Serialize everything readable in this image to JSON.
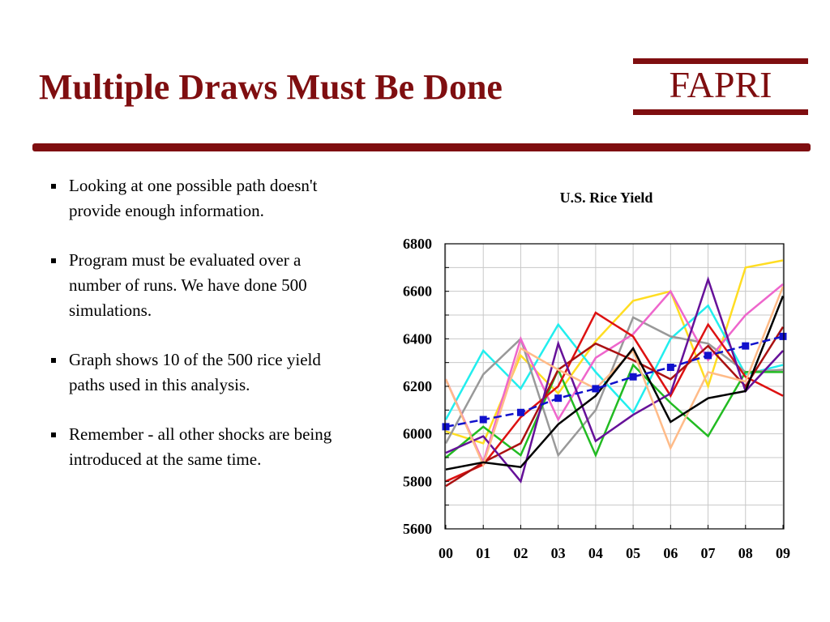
{
  "slide": {
    "title": "Multiple Draws Must Be Done",
    "logo": "FAPRI",
    "accent_color": "#7f0e10",
    "bullets": [
      "Looking at one possible path doesn't provide enough information.",
      "Program must be evaluated over a number of runs. We have done 500 simulations.",
      "Graph shows 10 of the 500 rice yield paths used in this analysis.",
      "Remember - all other shocks are being introduced at the same time."
    ]
  },
  "chart_data": {
    "type": "line",
    "title": "U.S. Rice Yield",
    "xlabel": "",
    "ylabel": "",
    "categories": [
      "00",
      "01",
      "02",
      "03",
      "04",
      "05",
      "06",
      "07",
      "08",
      "09"
    ],
    "ylim": [
      5600,
      6800
    ],
    "yticks": [
      "5600",
      "5800",
      "6000",
      "6200",
      "6400",
      "6600",
      "6800"
    ],
    "grid": true,
    "legend": "none",
    "series": [
      {
        "color": "#ffdd22",
        "values": [
          6010,
          5960,
          6330,
          6170,
          6390,
          6560,
          6600,
          6200,
          6700,
          6730
        ]
      },
      {
        "color": "#22eeee",
        "values": [
          6060,
          6350,
          6190,
          6460,
          6260,
          6090,
          6400,
          6540,
          6250,
          6290
        ]
      },
      {
        "color": "#999999",
        "values": [
          5960,
          6250,
          6400,
          5910,
          6100,
          6490,
          6410,
          6380,
          6260,
          6270
        ]
      },
      {
        "color": "#ee66cc",
        "values": [
          6230,
          5880,
          6400,
          6060,
          6320,
          6420,
          6600,
          6310,
          6500,
          6630
        ]
      },
      {
        "color": "#22bb22",
        "values": [
          5900,
          6030,
          5910,
          6270,
          5910,
          6290,
          6130,
          5990,
          6260,
          6260
        ]
      },
      {
        "color": "#dd1111",
        "values": [
          5800,
          5870,
          6070,
          6200,
          6510,
          6410,
          6160,
          6460,
          6240,
          6160
        ]
      },
      {
        "color": "#aa1111",
        "values": [
          5780,
          5880,
          5960,
          6270,
          6380,
          6310,
          6230,
          6370,
          6200,
          6450
        ]
      },
      {
        "color": "#661199",
        "values": [
          5920,
          5990,
          5800,
          6380,
          5970,
          6080,
          6170,
          6650,
          6180,
          6350
        ]
      },
      {
        "color": "#ffbb88",
        "values": [
          6230,
          5870,
          6360,
          6270,
          6190,
          6350,
          5940,
          6260,
          6220,
          6620
        ]
      },
      {
        "color": "#000000",
        "values": [
          5850,
          5880,
          5860,
          6040,
          6160,
          6360,
          6050,
          6150,
          6180,
          6580
        ]
      },
      {
        "color": "#1111cc",
        "marker": "square",
        "values": [
          6030,
          6060,
          6090,
          6150,
          6190,
          6240,
          6280,
          6330,
          6370,
          6410
        ]
      }
    ]
  }
}
